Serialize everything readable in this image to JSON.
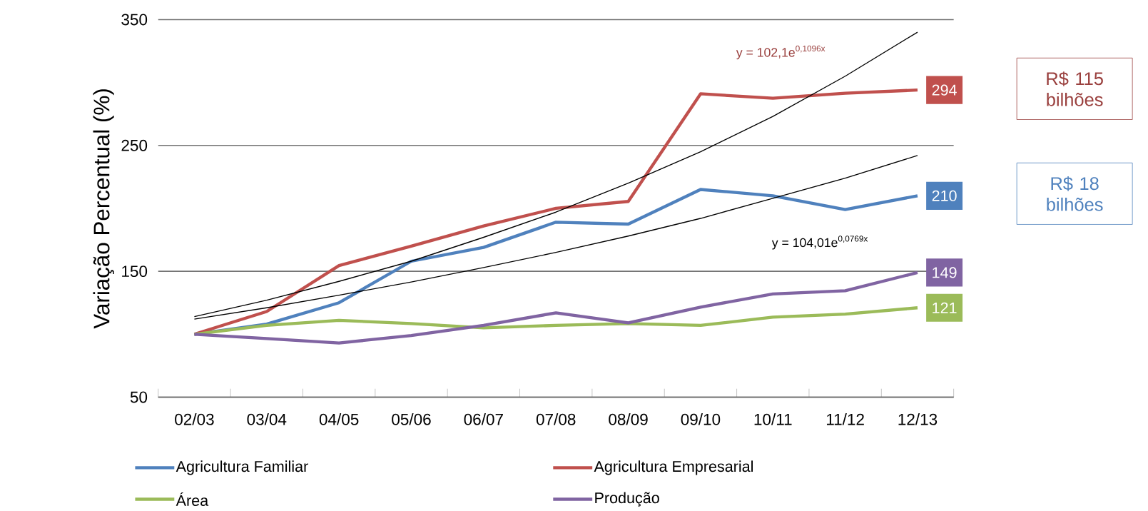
{
  "chart_data": {
    "type": "line",
    "ylabel": "Variação Percentual (%)",
    "categories": [
      "02/03",
      "03/04",
      "04/05",
      "05/06",
      "06/07",
      "07/08",
      "08/09",
      "09/10",
      "10/11",
      "11/12",
      "12/13"
    ],
    "ylim": [
      50,
      350
    ],
    "yticks": [
      50,
      150,
      250,
      350
    ],
    "grid": "y",
    "legend": "bottom",
    "marker": "none",
    "line_style": "solid",
    "series": [
      {
        "name": "Agricultura Familiar",
        "color": "#4f81bd",
        "values": [
          100,
          108,
          125,
          158,
          169,
          189,
          187.5,
          215,
          210,
          199,
          210
        ],
        "value_labels": [
          null,
          null,
          null,
          null,
          null,
          null,
          null,
          null,
          null,
          null,
          "210"
        ]
      },
      {
        "name": "Agricultura Empresarial",
        "color": "#c0504d",
        "values": [
          100,
          118,
          154.5,
          170,
          186,
          200,
          205.5,
          291,
          287.5,
          291.5,
          294
        ],
        "value_labels": [
          null,
          null,
          null,
          null,
          null,
          null,
          null,
          null,
          null,
          null,
          "294"
        ]
      },
      {
        "name": "Área",
        "color": "#9bbb59",
        "values": [
          100,
          107,
          111,
          108.5,
          105,
          107,
          108.5,
          107,
          113.5,
          116,
          121
        ],
        "value_labels": [
          null,
          null,
          null,
          null,
          null,
          null,
          null,
          null,
          null,
          null,
          "121"
        ]
      },
      {
        "name": "Produção",
        "color": "#8064a2",
        "values": [
          100,
          96.5,
          93,
          99,
          107,
          117,
          109,
          121.5,
          132,
          134.5,
          149
        ],
        "value_labels": [
          null,
          null,
          null,
          null,
          null,
          null,
          null,
          null,
          null,
          null,
          "149"
        ]
      },
      {
        "type": "line",
        "color": "#000000",
        "values": [
          114,
          127,
          142,
          158,
          177,
          197,
          220,
          245,
          273,
          305,
          340
        ]
      },
      {
        "type": "line",
        "color": "#000000",
        "values": [
          112,
          121,
          131,
          141.5,
          153,
          165,
          178,
          192,
          208,
          224,
          242
        ]
      }
    ],
    "annotations": [
      "y = 102,1e$^{0,1096x}$",
      "y = 104,01e$^{0,0769x}$",
      "R$ 115 bilhões",
      "R$ 18 bilhões"
    ]
  }
}
